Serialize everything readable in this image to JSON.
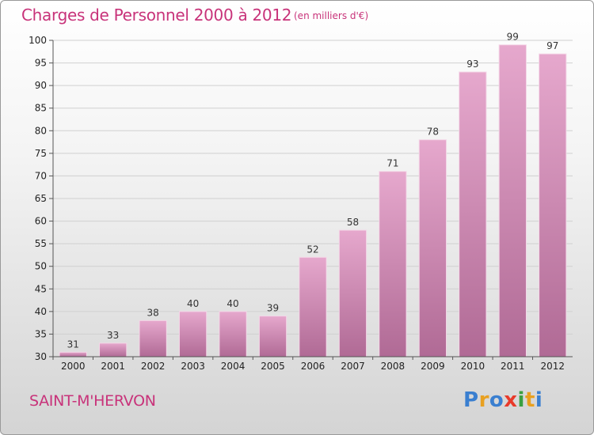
{
  "chart_data": {
    "type": "bar",
    "title": "Charges de Personnel 2000 à 2012",
    "subtitle": "(en milliers d'€)",
    "xlabel": "",
    "ylabel": "",
    "categories": [
      "2000",
      "2001",
      "2002",
      "2003",
      "2004",
      "2005",
      "2006",
      "2007",
      "2008",
      "2009",
      "2010",
      "2011",
      "2012"
    ],
    "values": [
      31,
      33,
      38,
      40,
      40,
      39,
      52,
      58,
      71,
      78,
      93,
      99,
      97
    ],
    "data_labels": [
      "31",
      "33",
      "38",
      "40",
      "40",
      "39",
      "52",
      "58",
      "71",
      "78",
      "93",
      "99",
      "97"
    ],
    "ylim": [
      30,
      100
    ],
    "yticks": [
      "30",
      "35",
      "40",
      "45",
      "50",
      "55",
      "60",
      "65",
      "70",
      "75",
      "80",
      "85",
      "90",
      "95",
      "100"
    ],
    "grid": true,
    "legend": "none"
  },
  "footer": {
    "commune": "SAINT-M'HERVON",
    "logo": [
      "P",
      "r",
      "o",
      "x",
      "i",
      "t",
      "i"
    ]
  },
  "colors": {
    "bar_top": "#e6a8cd",
    "bar_bottom": "#b06a95",
    "title": "#c8337a",
    "grid": "#d0d0d0",
    "logo": [
      "#3a7fd0",
      "#e8a020",
      "#3a7fd0",
      "#e83a2a",
      "#3aa040",
      "#e8a020",
      "#3a7fd0"
    ]
  }
}
